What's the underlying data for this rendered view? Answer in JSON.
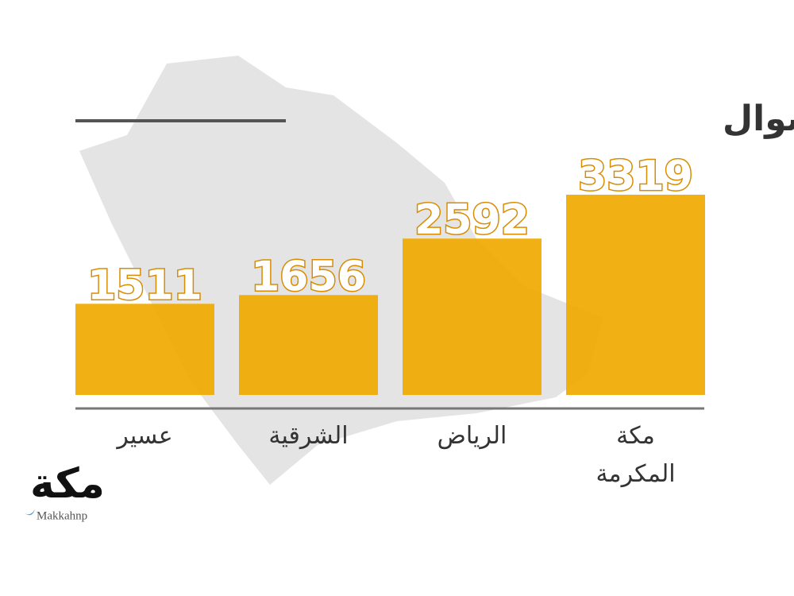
{
  "chart_data": {
    "type": "bar",
    "title": "عقود النكاح خلال شوال",
    "categories": [
      "عسير",
      "الشرقية",
      "الرياض",
      "مكة المكرمة"
    ],
    "values": [
      1511,
      1656,
      2592,
      3319
    ],
    "color": "#f0aa00"
  },
  "logo": {
    "name": "مكة",
    "handle": "Makkahnp"
  }
}
